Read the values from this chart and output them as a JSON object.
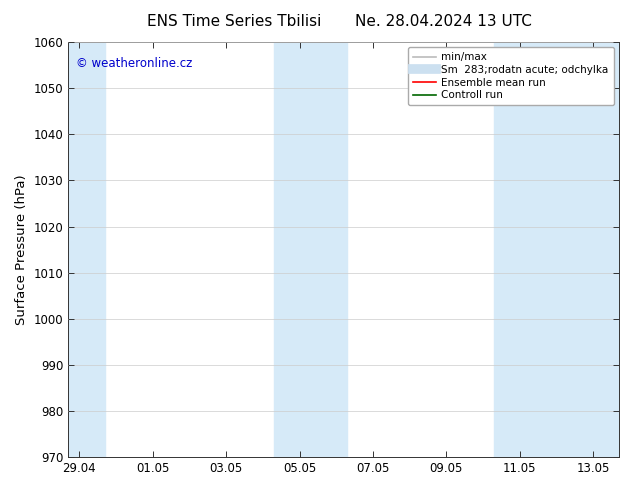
{
  "title_left": "ENS Time Series Tbilisi",
  "title_right": "Ne. 28.04.2024 13 UTC",
  "ylabel": "Surface Pressure (hPa)",
  "ylim": [
    970,
    1060
  ],
  "yticks": [
    970,
    980,
    990,
    1000,
    1010,
    1020,
    1030,
    1040,
    1050,
    1060
  ],
  "x_tick_labels": [
    "29.04",
    "01.05",
    "03.05",
    "05.05",
    "07.05",
    "09.05",
    "11.05",
    "13.05"
  ],
  "x_tick_positions": [
    0,
    2,
    4,
    6,
    8,
    10,
    12,
    14
  ],
  "x_min": -0.3,
  "x_max": 14.7,
  "background_color": "#ffffff",
  "plot_bg_color": "#ffffff",
  "shaded_bands": [
    {
      "x_start": -0.3,
      "x_end": 0.7,
      "color": "#d6eaf8"
    },
    {
      "x_start": 5.3,
      "x_end": 7.3,
      "color": "#d6eaf8"
    },
    {
      "x_start": 11.3,
      "x_end": 14.7,
      "color": "#d6eaf8"
    }
  ],
  "watermark_text": "© weatheronline.cz",
  "watermark_color": "#0000cc",
  "legend_items": [
    {
      "label": "min/max",
      "color": "#bbbbbb",
      "lw": 1.2
    },
    {
      "label": "Sm  283;rodatn acute; odchylka",
      "color": "#cce0f0",
      "lw": 7
    },
    {
      "label": "Ensemble mean run",
      "color": "#ff0000",
      "lw": 1.2
    },
    {
      "label": "Controll run",
      "color": "#006600",
      "lw": 1.2
    }
  ],
  "title_fontsize": 11,
  "tick_fontsize": 8.5,
  "ylabel_fontsize": 9.5,
  "watermark_fontsize": 8.5,
  "legend_fontsize": 7.5
}
